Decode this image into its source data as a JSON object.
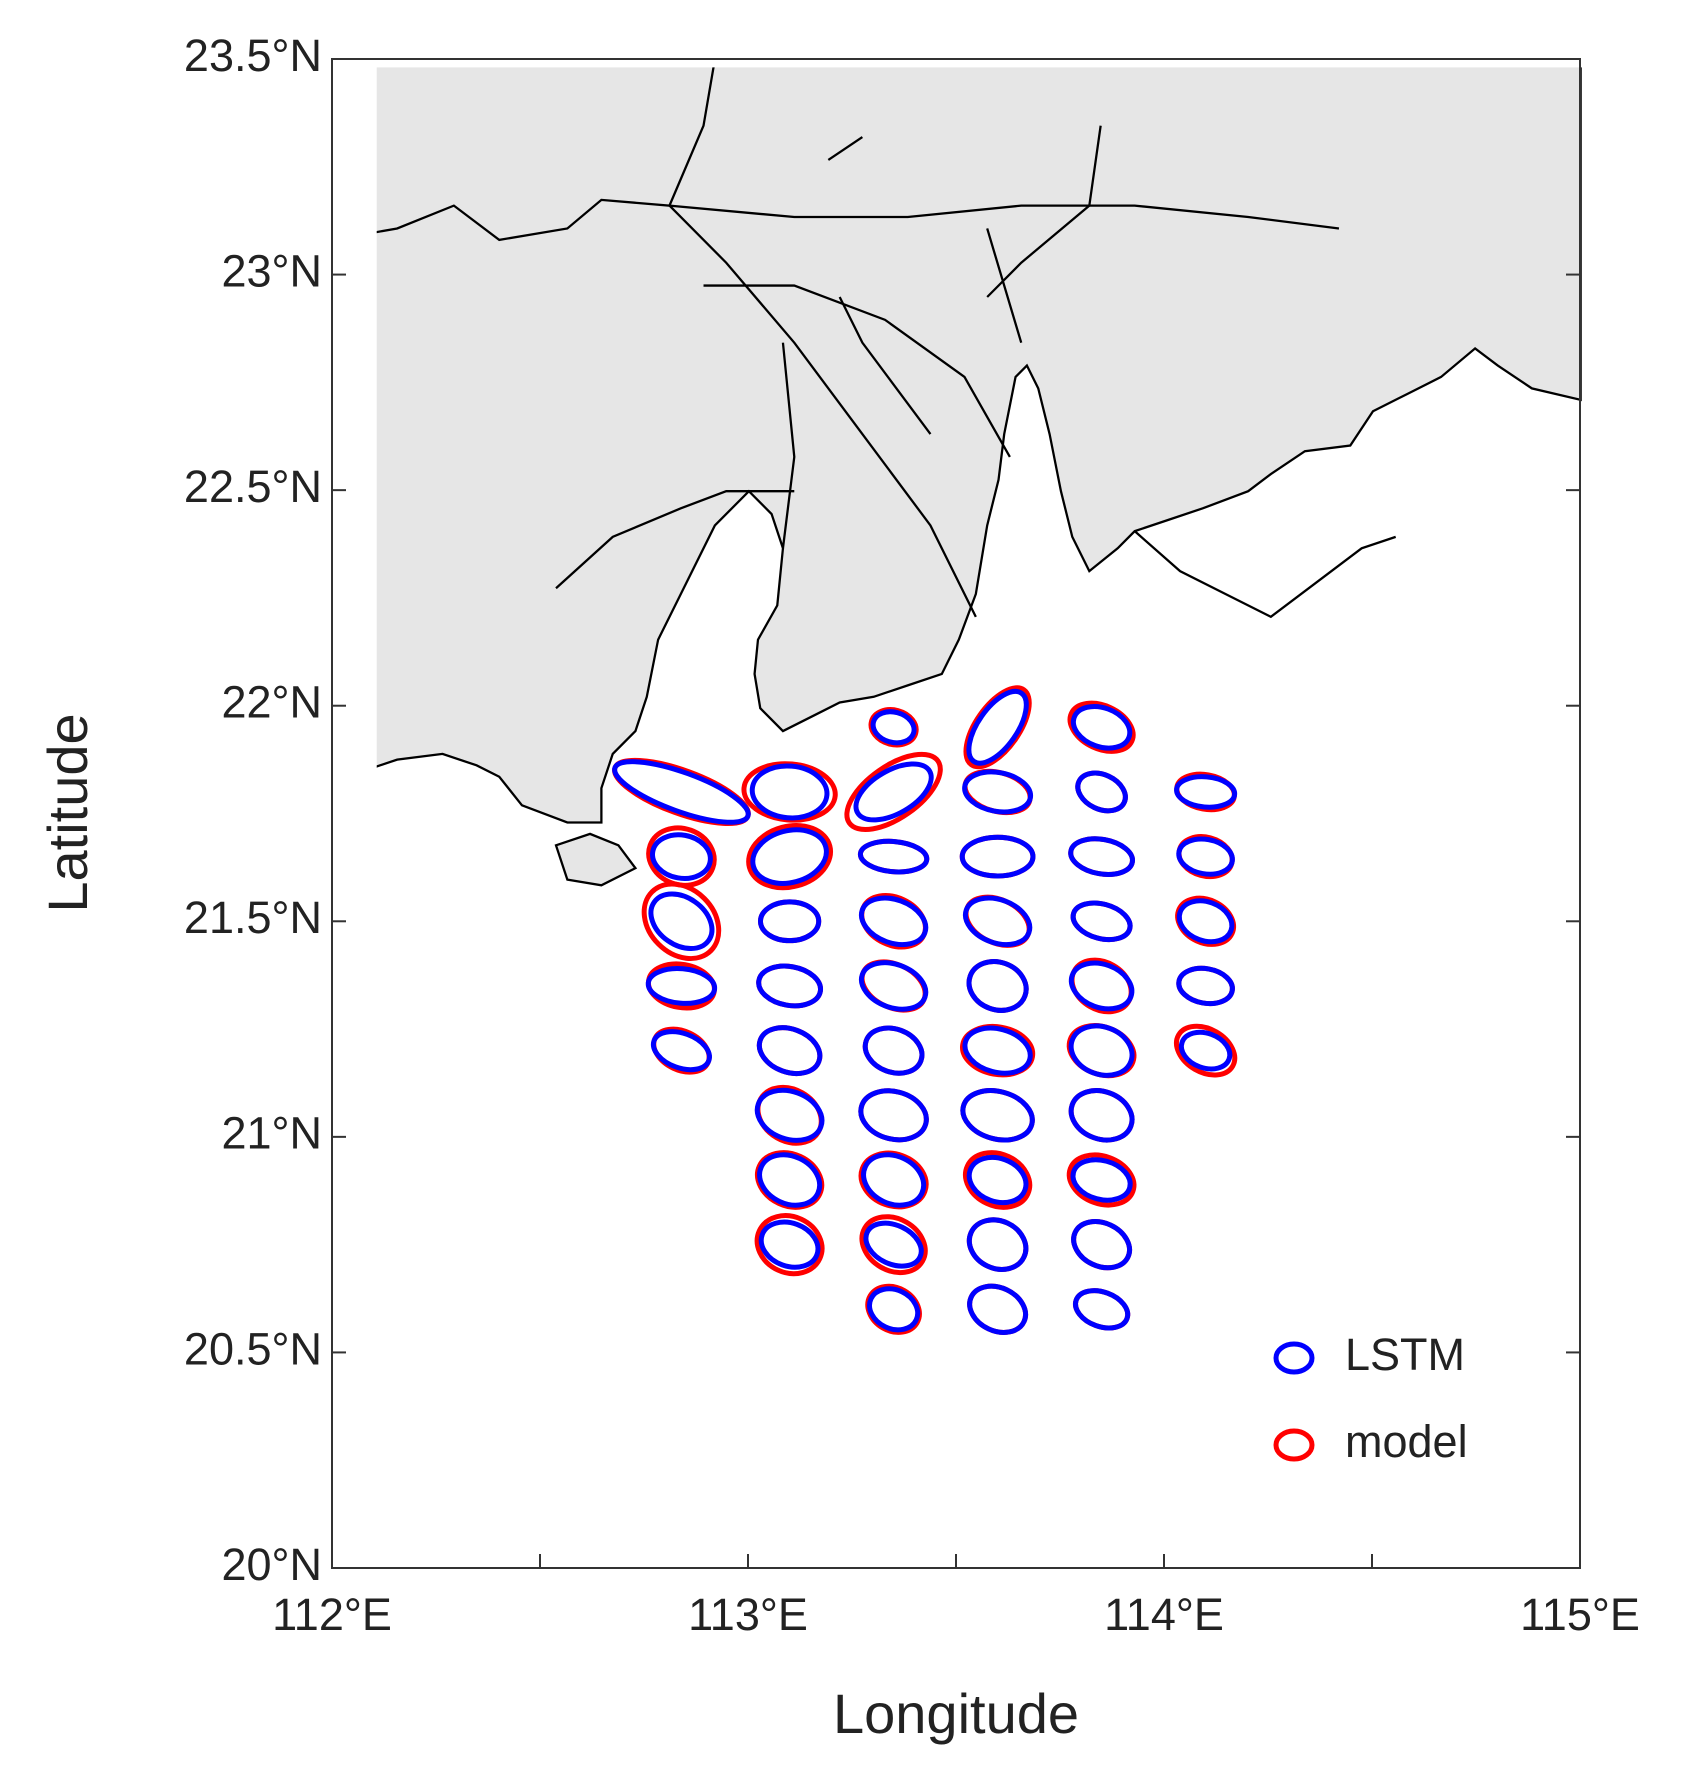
{
  "chart_data": {
    "type": "ellipse-map",
    "xlabel": "Longitude",
    "ylabel": "Latitude",
    "xlim": [
      112,
      115
    ],
    "ylim": [
      20,
      23.5
    ],
    "xticks": [
      {
        "value": 112,
        "label": "112°E"
      },
      {
        "value": 113,
        "label": "113°E"
      },
      {
        "value": 114,
        "label": "114°E"
      },
      {
        "value": 115,
        "label": "115°E"
      }
    ],
    "xminorticks": [
      112.5,
      113.5,
      114.5
    ],
    "yticks": [
      {
        "value": 20,
        "label": "20°N"
      },
      {
        "value": 20.5,
        "label": "20.5°N"
      },
      {
        "value": 21,
        "label": "21°N"
      },
      {
        "value": 21.5,
        "label": "21.5°N"
      },
      {
        "value": 22,
        "label": "22°N"
      },
      {
        "value": 22.5,
        "label": "22.5°N"
      },
      {
        "value": 23,
        "label": "23°N"
      },
      {
        "value": 23.5,
        "label": "23.5°N"
      }
    ],
    "legend": "lower right",
    "series": [
      {
        "name": "LSTM",
        "color": "#0000ff",
        "x": [
          112.84,
          112.84,
          112.84,
          112.84,
          112.84,
          113.1,
          113.1,
          113.1,
          113.1,
          113.1,
          113.1,
          113.1,
          113.1,
          113.35,
          113.35,
          113.35,
          113.35,
          113.35,
          113.35,
          113.35,
          113.35,
          113.35,
          113.35,
          113.6,
          113.6,
          113.6,
          113.6,
          113.6,
          113.6,
          113.6,
          113.6,
          113.6,
          113.6,
          113.85,
          113.85,
          113.85,
          113.85,
          113.85,
          113.85,
          113.85,
          113.85,
          113.85,
          113.85,
          114.1,
          114.1,
          114.1,
          114.1,
          114.1
        ],
        "y": [
          21.8,
          21.65,
          21.5,
          21.35,
          21.2,
          21.8,
          21.65,
          21.5,
          21.35,
          21.2,
          21.05,
          20.9,
          20.75,
          21.95,
          21.8,
          21.65,
          21.5,
          21.35,
          21.2,
          21.05,
          20.9,
          20.75,
          20.6,
          21.95,
          21.8,
          21.65,
          21.5,
          21.35,
          21.2,
          21.05,
          20.9,
          20.75,
          20.6,
          21.95,
          21.8,
          21.65,
          21.5,
          21.35,
          21.2,
          21.05,
          20.9,
          20.75,
          20.6,
          21.8,
          21.65,
          21.5,
          21.35,
          21.2
        ],
        "major": [
          0.17,
          0.07,
          0.08,
          0.08,
          0.07,
          0.09,
          0.09,
          0.07,
          0.075,
          0.075,
          0.08,
          0.075,
          0.07,
          0.05,
          0.1,
          0.08,
          0.08,
          0.08,
          0.07,
          0.08,
          0.075,
          0.07,
          0.06,
          0.1,
          0.08,
          0.085,
          0.08,
          0.07,
          0.08,
          0.085,
          0.07,
          0.07,
          0.07,
          0.07,
          0.06,
          0.075,
          0.07,
          0.075,
          0.075,
          0.075,
          0.07,
          0.07,
          0.065,
          0.07,
          0.065,
          0.065,
          0.065,
          0.06
        ],
        "minor": [
          0.045,
          0.05,
          0.055,
          0.04,
          0.04,
          0.06,
          0.06,
          0.045,
          0.045,
          0.05,
          0.055,
          0.055,
          0.05,
          0.035,
          0.05,
          0.035,
          0.05,
          0.05,
          0.05,
          0.055,
          0.055,
          0.045,
          0.045,
          0.045,
          0.045,
          0.045,
          0.05,
          0.055,
          0.05,
          0.055,
          0.05,
          0.055,
          0.05,
          0.045,
          0.04,
          0.04,
          0.04,
          0.05,
          0.055,
          0.055,
          0.045,
          0.05,
          0.04,
          0.035,
          0.04,
          0.045,
          0.04,
          0.04
        ],
        "angle": [
          -20,
          -10,
          -35,
          -5,
          -20,
          -5,
          15,
          0,
          -10,
          -20,
          -20,
          -25,
          -20,
          -15,
          30,
          -5,
          -20,
          -20,
          -20,
          -15,
          -25,
          -25,
          -25,
          55,
          -10,
          0,
          -20,
          -20,
          -15,
          -15,
          -20,
          -25,
          -25,
          -20,
          -25,
          -10,
          -15,
          -20,
          -20,
          -20,
          -15,
          -25,
          -20,
          -5,
          -10,
          -20,
          -10,
          -20
        ]
      },
      {
        "name": "model",
        "color": "#ff0000",
        "x": [
          112.84,
          112.84,
          112.84,
          112.84,
          112.84,
          113.1,
          113.1,
          113.1,
          113.1,
          113.1,
          113.1,
          113.1,
          113.1,
          113.35,
          113.35,
          113.35,
          113.35,
          113.35,
          113.35,
          113.35,
          113.35,
          113.35,
          113.35,
          113.6,
          113.6,
          113.6,
          113.6,
          113.6,
          113.6,
          113.6,
          113.6,
          113.6,
          113.6,
          113.85,
          113.85,
          113.85,
          113.85,
          113.85,
          113.85,
          113.85,
          113.85,
          113.85,
          113.85,
          114.1,
          114.1,
          114.1,
          114.1,
          114.1
        ],
        "y": [
          21.8,
          21.65,
          21.5,
          21.35,
          21.2,
          21.8,
          21.65,
          21.5,
          21.35,
          21.2,
          21.05,
          20.9,
          20.75,
          21.95,
          21.8,
          21.65,
          21.5,
          21.35,
          21.2,
          21.05,
          20.9,
          20.75,
          20.6,
          21.95,
          21.8,
          21.65,
          21.5,
          21.35,
          21.2,
          21.05,
          20.9,
          20.75,
          20.6,
          21.95,
          21.8,
          21.65,
          21.5,
          21.35,
          21.2,
          21.05,
          20.9,
          20.75,
          20.6,
          21.8,
          21.65,
          21.5,
          21.35,
          21.2
        ],
        "major": [
          0.17,
          0.08,
          0.1,
          0.08,
          0.07,
          0.11,
          0.1,
          0.07,
          0.075,
          0.075,
          0.08,
          0.08,
          0.08,
          0.055,
          0.13,
          0.08,
          0.08,
          0.08,
          0.07,
          0.08,
          0.08,
          0.08,
          0.065,
          0.11,
          0.08,
          0.085,
          0.08,
          0.07,
          0.085,
          0.085,
          0.08,
          0.07,
          0.07,
          0.08,
          0.06,
          0.075,
          0.07,
          0.075,
          0.08,
          0.075,
          0.08,
          0.07,
          0.065,
          0.07,
          0.065,
          0.07,
          0.065,
          0.075
        ],
        "minor": [
          0.05,
          0.065,
          0.075,
          0.05,
          0.045,
          0.065,
          0.07,
          0.045,
          0.045,
          0.05,
          0.06,
          0.06,
          0.065,
          0.04,
          0.06,
          0.035,
          0.055,
          0.05,
          0.05,
          0.055,
          0.06,
          0.06,
          0.05,
          0.05,
          0.045,
          0.045,
          0.05,
          0.055,
          0.055,
          0.055,
          0.06,
          0.055,
          0.05,
          0.05,
          0.04,
          0.04,
          0.04,
          0.055,
          0.055,
          0.055,
          0.055,
          0.05,
          0.04,
          0.04,
          0.045,
          0.05,
          0.04,
          0.05
        ],
        "angle": [
          -20,
          -20,
          -45,
          -10,
          -25,
          -5,
          15,
          0,
          -10,
          -20,
          -30,
          -25,
          -25,
          -15,
          35,
          -5,
          -25,
          -25,
          -20,
          -15,
          -20,
          -30,
          -30,
          55,
          -15,
          0,
          -25,
          -20,
          -10,
          -15,
          -25,
          -25,
          -25,
          -25,
          -25,
          -10,
          -15,
          -30,
          -20,
          -20,
          -20,
          -25,
          -20,
          -10,
          -15,
          -25,
          -10,
          -30
        ]
      }
    ]
  }
}
